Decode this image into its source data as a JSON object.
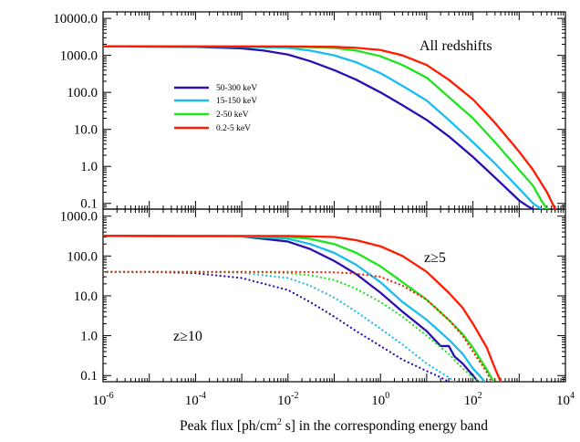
{
  "chart_data": [
    {
      "type": "line",
      "panel": "top",
      "x_scale": "log",
      "y_scale": "log",
      "xlim": [
        1e-06,
        10000.0
      ],
      "ylim": [
        0.07,
        15000
      ],
      "yticks": [
        0.1,
        1,
        10,
        100,
        1000,
        10000
      ],
      "ytick_labels": [
        "0.1",
        "1.0",
        "10.0",
        "100.0",
        "1000.0",
        "10000.0"
      ],
      "annotation": "All redshifts",
      "legend": {
        "placement": "center-left",
        "entries": [
          {
            "label": "50-300 keV",
            "color": "#2b0fb0"
          },
          {
            "label": "15-150 keV",
            "color": "#19bdf0"
          },
          {
            "label": "2-50 keV",
            "color": "#1ee41e"
          },
          {
            "label": "0.2-5 keV",
            "color": "#ff1a00"
          }
        ]
      },
      "series": [
        {
          "legend_index": 0,
          "color": "#2b0fb0",
          "style": "solid",
          "x": [
            1e-06,
            0.0001,
            0.001,
            0.003,
            0.01,
            0.03,
            0.1,
            0.3,
            1,
            3,
            10,
            30,
            100,
            300,
            1000,
            1500,
            2000
          ],
          "y": [
            1750,
            1700,
            1550,
            1350,
            1050,
            700,
            400,
            220,
            100,
            45,
            18,
            6.5,
            1.8,
            0.5,
            0.12,
            0.085,
            0.07
          ]
        },
        {
          "legend_index": 1,
          "color": "#19bdf0",
          "style": "solid",
          "x": [
            1e-06,
            0.001,
            0.01,
            0.03,
            0.1,
            0.3,
            1,
            3,
            10,
            30,
            100,
            300,
            1000,
            2000,
            3000
          ],
          "y": [
            1750,
            1720,
            1600,
            1350,
            1000,
            650,
            330,
            150,
            60,
            18,
            4.5,
            1.2,
            0.25,
            0.1,
            0.07
          ]
        },
        {
          "legend_index": 2,
          "color": "#1ee41e",
          "style": "solid",
          "x": [
            1e-06,
            0.01,
            0.1,
            0.3,
            1,
            3,
            10,
            30,
            100,
            300,
            1000,
            2000,
            3000,
            4000
          ],
          "y": [
            1750,
            1730,
            1600,
            1350,
            950,
            550,
            250,
            75,
            20,
            4.5,
            0.8,
            0.3,
            0.12,
            0.07
          ]
        },
        {
          "legend_index": 3,
          "color": "#ff1a00",
          "style": "solid",
          "x": [
            1e-06,
            0.01,
            0.1,
            0.3,
            1,
            3,
            10,
            30,
            100,
            300,
            1000,
            2000,
            4000,
            6000
          ],
          "y": [
            1750,
            1740,
            1700,
            1600,
            1400,
            1000,
            550,
            220,
            65,
            15,
            2.5,
            0.8,
            0.2,
            0.07
          ]
        }
      ]
    },
    {
      "type": "line",
      "panel": "bottom",
      "x_scale": "log",
      "y_scale": "log",
      "xlim": [
        1e-06,
        10000.0
      ],
      "ylim": [
        0.07,
        1500
      ],
      "yticks": [
        0.1,
        1,
        10,
        100,
        1000
      ],
      "ytick_labels": [
        "0.1",
        "1.0",
        "10.0",
        "100.0",
        "1000.0"
      ],
      "xticks": [
        1e-06,
        0.0001,
        0.01,
        1,
        100,
        10000
      ],
      "xtick_labels": [
        {
          "base": "10",
          "exp": "-6"
        },
        {
          "base": "10",
          "exp": "-4"
        },
        {
          "base": "10",
          "exp": "-2"
        },
        {
          "base": "10",
          "exp": "0"
        },
        {
          "base": "10",
          "exp": "2"
        },
        {
          "base": "10",
          "exp": "4"
        }
      ],
      "xlabel_parts": [
        "Peak flux [ph/cm",
        "2",
        " s] in the corresponding energy band"
      ],
      "annotations": [
        "z≥5",
        "z≥10"
      ],
      "series": [
        {
          "color": "#2b0fb0",
          "style": "solid",
          "x": [
            1e-06,
            0.001,
            0.01,
            0.03,
            0.1,
            0.3,
            1,
            3,
            10,
            20,
            30,
            40,
            60,
            100,
            130
          ],
          "y": [
            320,
            310,
            230,
            150,
            75,
            35,
            12,
            4,
            1.3,
            0.55,
            0.55,
            0.3,
            0.2,
            0.1,
            0.07
          ]
        },
        {
          "color": "#19bdf0",
          "style": "solid",
          "x": [
            1e-06,
            0.001,
            0.01,
            0.03,
            0.1,
            0.3,
            1,
            3,
            10,
            30,
            60,
            100,
            150,
            180
          ],
          "y": [
            320,
            315,
            270,
            200,
            120,
            60,
            22,
            7,
            2.5,
            0.8,
            0.35,
            0.15,
            0.09,
            0.07
          ]
        },
        {
          "color": "#1ee41e",
          "style": "solid",
          "x": [
            1e-06,
            0.01,
            0.03,
            0.1,
            0.3,
            1,
            3,
            10,
            30,
            60,
            100,
            200,
            280
          ],
          "y": [
            320,
            305,
            270,
            200,
            120,
            55,
            22,
            8,
            2.5,
            1.1,
            0.5,
            0.14,
            0.07
          ]
        },
        {
          "color": "#ff1a00",
          "style": "solid",
          "x": [
            1e-06,
            0.01,
            0.1,
            0.3,
            1,
            3,
            10,
            30,
            60,
            100,
            200,
            300,
            400
          ],
          "y": [
            320,
            318,
            300,
            250,
            175,
            100,
            40,
            12,
            5,
            2,
            0.5,
            0.15,
            0.07
          ]
        },
        {
          "color": "#2b0fb0",
          "style": "dotted",
          "x": [
            1e-06,
            1e-05,
            0.0001,
            0.001,
            0.01,
            0.03,
            0.1,
            0.3,
            1,
            3,
            10,
            20,
            30
          ],
          "y": [
            40,
            40,
            37,
            28,
            14,
            7,
            3,
            1.3,
            0.55,
            0.25,
            0.13,
            0.09,
            0.07
          ]
        },
        {
          "color": "#19bdf0",
          "style": "dotted",
          "x": [
            1e-06,
            0.0001,
            0.001,
            0.01,
            0.03,
            0.1,
            0.3,
            1,
            3,
            10,
            20,
            30,
            40
          ],
          "y": [
            40,
            40,
            38,
            28,
            18,
            9,
            4,
            1.5,
            0.6,
            0.2,
            0.12,
            0.09,
            0.07
          ]
        },
        {
          "color": "#1ee41e",
          "style": "dotted",
          "x": [
            1e-06,
            0.001,
            0.01,
            0.03,
            0.1,
            0.3,
            1,
            3,
            10,
            30,
            60,
            100,
            150
          ],
          "y": [
            40,
            40,
            37,
            33,
            25,
            15,
            7,
            3,
            1,
            0.35,
            0.15,
            0.09,
            0.07
          ]
        },
        {
          "color": "#ff1a00",
          "style": "dotted",
          "x": [
            1e-06,
            0.01,
            0.1,
            0.3,
            1,
            3,
            10,
            30,
            60,
            100,
            150,
            200,
            250
          ],
          "y": [
            40,
            40,
            39,
            36,
            30,
            18,
            8,
            2.5,
            1,
            0.4,
            0.2,
            0.12,
            0.07
          ]
        }
      ]
    }
  ]
}
